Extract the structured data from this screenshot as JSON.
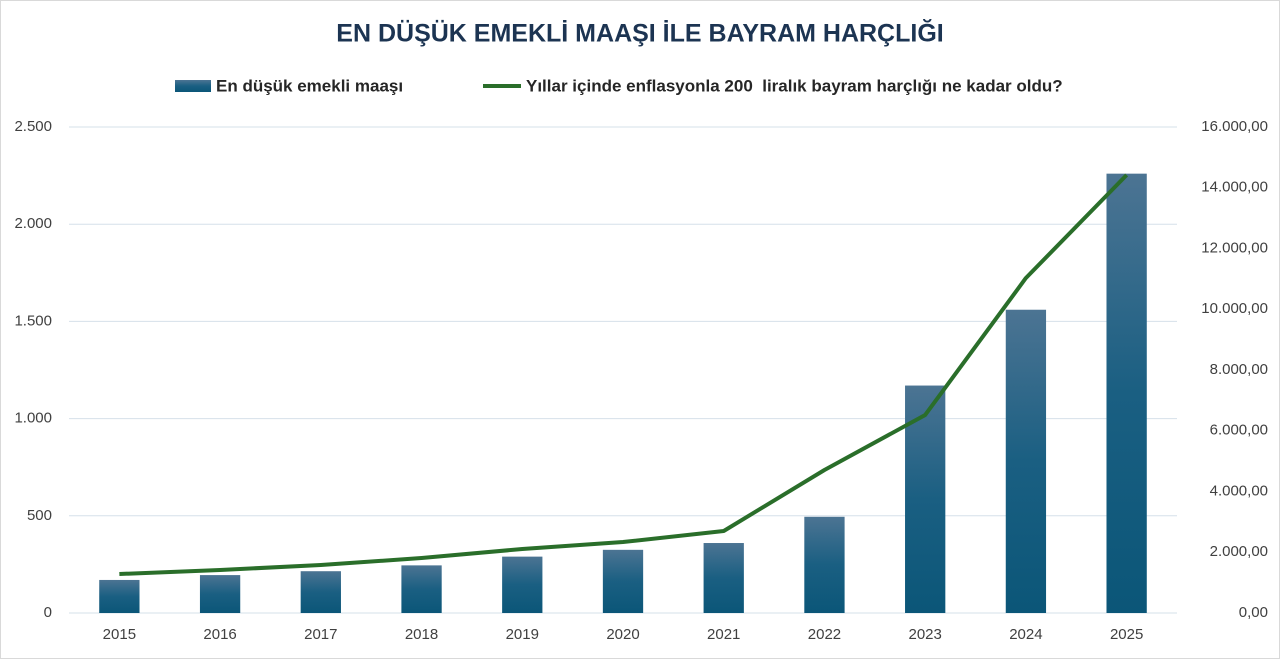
{
  "chart_data": {
    "type": "bar_line",
    "title": "EN DÜŞÜK EMEKLİ MAAŞI İLE BAYRAM HARÇLIĞI",
    "categories": [
      "2015",
      "2016",
      "2017",
      "2018",
      "2019",
      "2020",
      "2021",
      "2022",
      "2023",
      "2024",
      "2025"
    ],
    "series": [
      {
        "name": "En düşük emekli maaşı",
        "type": "bar",
        "color": "#0b5678",
        "values": [
          170,
          195,
          215,
          245,
          290,
          325,
          360,
          495,
          1170,
          1560,
          2260
        ]
      },
      {
        "name": "Yıllar içinde enflasyonla 200  liralık bayram harçlığı ne kadar oldu?",
        "type": "line",
        "axis": "y2",
        "color": "#2a6e2a",
        "values": [
          1284,
          1416,
          1580,
          1810,
          2107,
          2337,
          2700,
          4708,
          6519,
          11029,
          14420
        ]
      }
    ],
    "ylim": [
      0,
      2500
    ],
    "yticks": [
      0,
      500,
      {
        "value": 1000,
        "label": "1.000"
      },
      {
        "value": 1500,
        "label": "1.500"
      },
      {
        "value": 2000,
        "label": "2.000"
      },
      {
        "value": 2500,
        "label": "2.500"
      }
    ],
    "y2lim": [
      0,
      16000
    ],
    "y2ticks": [
      {
        "value": 0,
        "label": "0,00"
      },
      {
        "value": 2000,
        "label": "2.000,00"
      },
      {
        "value": 4000,
        "label": "4.000,00"
      },
      {
        "value": 6000,
        "label": "6.000,00"
      },
      {
        "value": 8000,
        "label": "8.000,00"
      },
      {
        "value": 10000,
        "label": "10.000,00"
      },
      {
        "value": 12000,
        "label": "12.000,00"
      },
      {
        "value": 14000,
        "label": "14.000,00"
      },
      {
        "value": 16000,
        "label": "16.000,00"
      }
    ],
    "grid": true
  }
}
